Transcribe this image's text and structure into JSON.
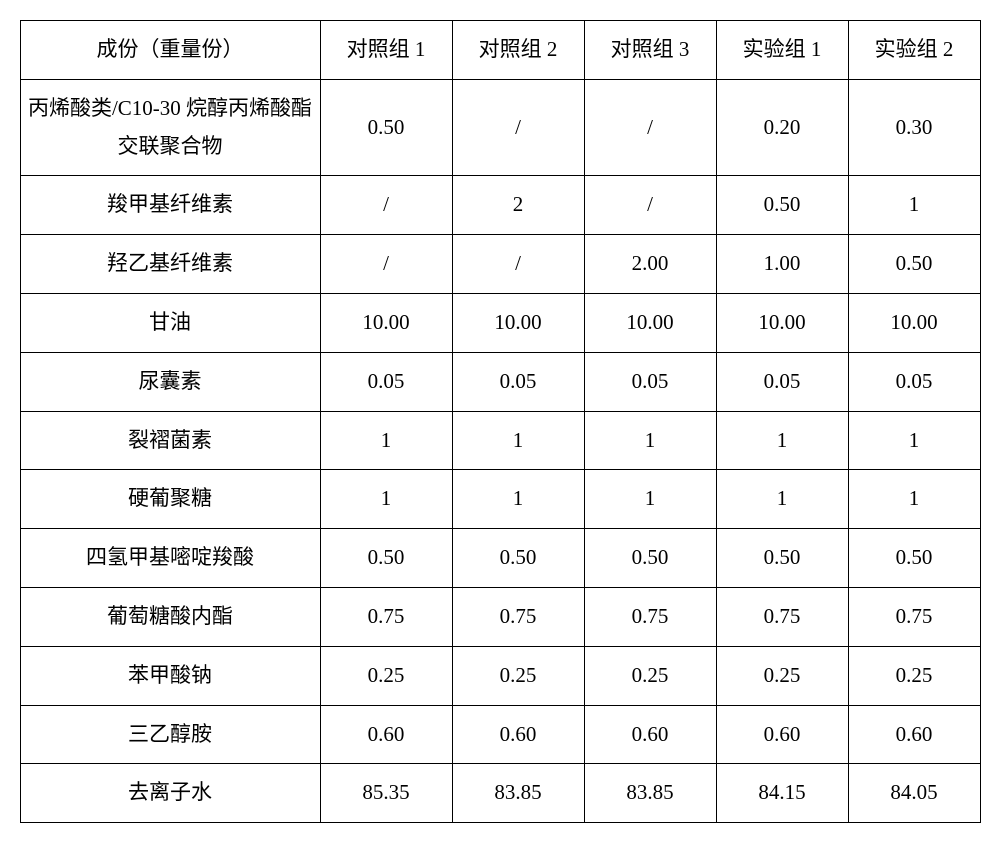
{
  "table": {
    "type": "table",
    "background_color": "#ffffff",
    "border_color": "#000000",
    "text_color": "#000000",
    "font_size": 21,
    "font_family": "SimSun",
    "columns": [
      "成份（重量份）",
      "对照组 1",
      "对照组 2",
      "对照组 3",
      "实验组 1",
      "实验组 2"
    ],
    "rows": [
      [
        "丙烯酸类/C10-30 烷醇丙烯酸酯交联聚合物",
        "0.50",
        "/",
        "/",
        "0.20",
        "0.30"
      ],
      [
        "羧甲基纤维素",
        "/",
        "2",
        "/",
        "0.50",
        "1"
      ],
      [
        "羟乙基纤维素",
        "/",
        "/",
        "2.00",
        "1.00",
        "0.50"
      ],
      [
        "甘油",
        "10.00",
        "10.00",
        "10.00",
        "10.00",
        "10.00"
      ],
      [
        "尿囊素",
        "0.05",
        "0.05",
        "0.05",
        "0.05",
        "0.05"
      ],
      [
        "裂褶菌素",
        "1",
        "1",
        "1",
        "1",
        "1"
      ],
      [
        "硬葡聚糖",
        "1",
        "1",
        "1",
        "1",
        "1"
      ],
      [
        "四氢甲基嘧啶羧酸",
        "0.50",
        "0.50",
        "0.50",
        "0.50",
        "0.50"
      ],
      [
        "葡萄糖酸内酯",
        "0.75",
        "0.75",
        "0.75",
        "0.75",
        "0.75"
      ],
      [
        "苯甲酸钠",
        "0.25",
        "0.25",
        "0.25",
        "0.25",
        "0.25"
      ],
      [
        "三乙醇胺",
        "0.60",
        "0.60",
        "0.60",
        "0.60",
        "0.60"
      ],
      [
        "去离子水",
        "85.35",
        "83.85",
        "83.85",
        "84.15",
        "84.05"
      ]
    ]
  }
}
